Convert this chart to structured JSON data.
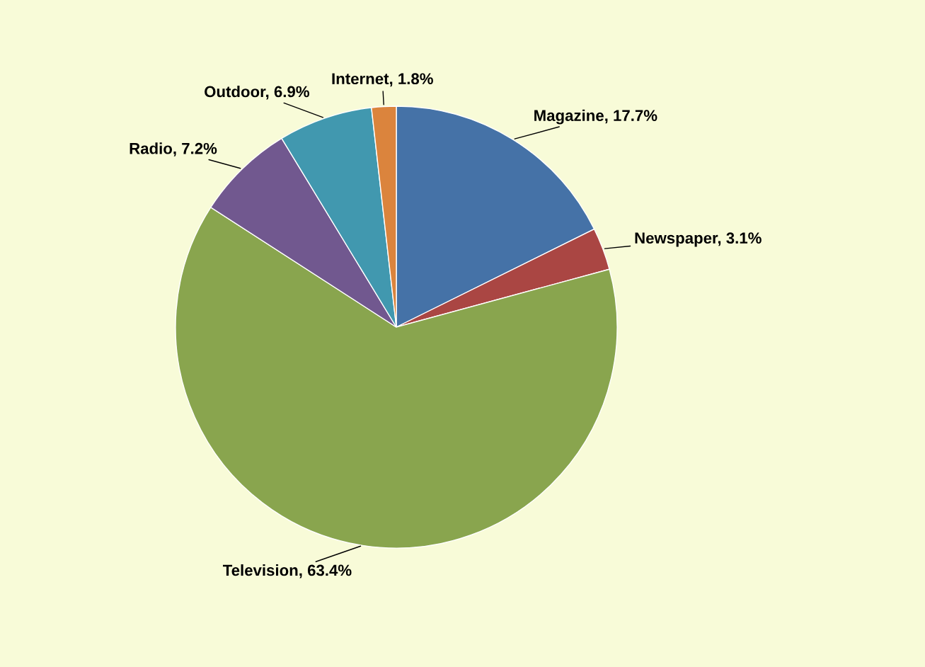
{
  "chart_data": {
    "type": "pie",
    "categories": [
      "Magazine",
      "Newspaper",
      "Television",
      "Radio",
      "Outdoor",
      "Internet"
    ],
    "values": [
      17.7,
      3.1,
      63.4,
      7.2,
      6.9,
      1.8
    ],
    "value_labels": [
      "17.7%",
      "3.1%",
      "63.4%",
      "7.2%",
      "6.9%",
      "1.8%"
    ],
    "colors": [
      "#4572a7",
      "#aa4643",
      "#89a54e",
      "#71588f",
      "#4198af",
      "#db843d"
    ],
    "legend": false
  }
}
